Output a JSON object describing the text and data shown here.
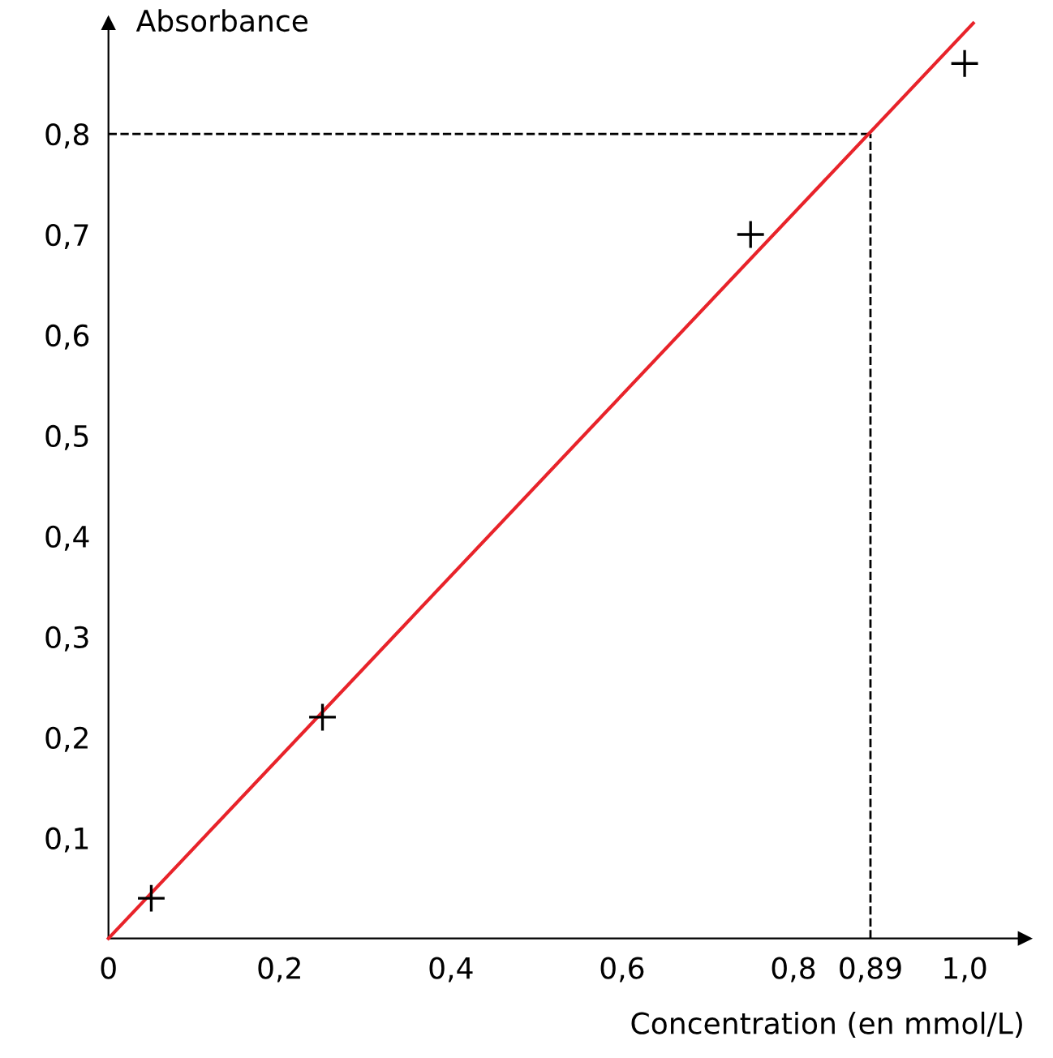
{
  "chart_data": {
    "type": "scatter",
    "xlabel": "Concentration (en mmol/L)",
    "ylabel": "Absorbance",
    "xlim": [
      0,
      1.07
    ],
    "ylim": [
      0,
      0.91
    ],
    "xticks": [
      {
        "value": 0,
        "label": "0"
      },
      {
        "value": 0.2,
        "label": "0,2"
      },
      {
        "value": 0.4,
        "label": "0,4"
      },
      {
        "value": 0.6,
        "label": "0,6"
      },
      {
        "value": 0.8,
        "label": "0,8"
      },
      {
        "value": 0.89,
        "label": "0,89"
      },
      {
        "value": 1.0,
        "label": "1,0"
      }
    ],
    "yticks": [
      {
        "value": 0.1,
        "label": "0,1"
      },
      {
        "value": 0.2,
        "label": "0,2"
      },
      {
        "value": 0.3,
        "label": "0,3"
      },
      {
        "value": 0.4,
        "label": "0,4"
      },
      {
        "value": 0.5,
        "label": "0,5"
      },
      {
        "value": 0.6,
        "label": "0,6"
      },
      {
        "value": 0.7,
        "label": "0,7"
      },
      {
        "value": 0.8,
        "label": "0,8"
      }
    ],
    "series": [
      {
        "color": "#000000",
        "marker": "cross",
        "x": [
          0.05,
          0.25,
          0.75,
          1.0
        ],
        "values": [
          0.04,
          0.22,
          0.7,
          0.87
        ]
      },
      {
        "type": "line",
        "color": "#e8232a",
        "marker": "none",
        "line_style": "solid",
        "x": [
          0,
          1.01
        ],
        "values": [
          0,
          0.91
        ]
      }
    ],
    "ref_lines": [
      {
        "axis": "y",
        "value": 0.8,
        "color": "#000000",
        "line_style": "dashed"
      },
      {
        "axis": "x",
        "value": 0.89,
        "color": "#000000",
        "line_style": "dashed"
      }
    ],
    "grid": false,
    "legend": false
  }
}
